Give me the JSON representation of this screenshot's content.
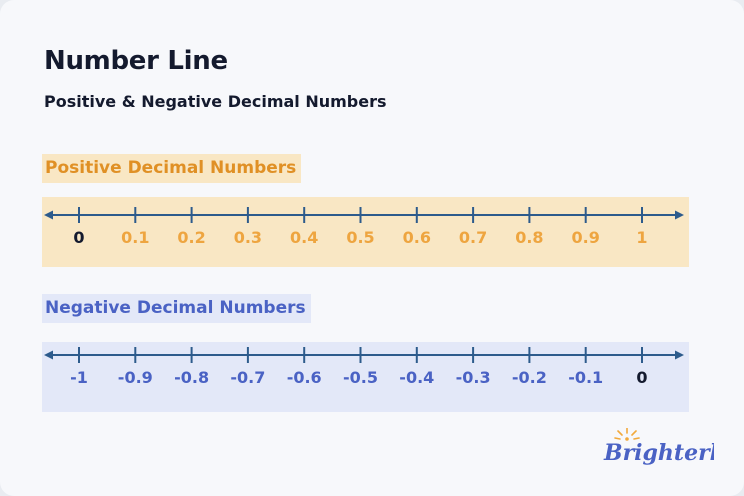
{
  "title": "Number Line",
  "subtitle": "Positive & Negative Decimal Numbers",
  "positive": {
    "label": "Positive Decimal Numbers",
    "ticks": [
      "0",
      "0.1",
      "0.2",
      "0.3",
      "0.4",
      "0.5",
      "0.6",
      "0.7",
      "0.8",
      "0.9",
      "1"
    ],
    "tick_colors": [
      "#141a2e",
      "#eea540",
      "#eea540",
      "#eea540",
      "#eea540",
      "#eea540",
      "#eea540",
      "#eea540",
      "#eea540",
      "#eea540",
      "#eea540"
    ],
    "band_color": "#f9e7c4"
  },
  "negative": {
    "label": "Negative Decimal Numbers",
    "ticks": [
      "-1",
      "-0.9",
      "-0.8",
      "-0.7",
      "-0.6",
      "-0.5",
      "-0.4",
      "-0.3",
      "-0.2",
      "-0.1",
      "0"
    ],
    "tick_colors": [
      "#4a62c4",
      "#4a62c4",
      "#4a62c4",
      "#4a62c4",
      "#4a62c4",
      "#4a62c4",
      "#4a62c4",
      "#4a62c4",
      "#4a62c4",
      "#4a62c4",
      "#141a2e"
    ],
    "band_color": "#e3e8f8"
  },
  "line_color": "#2d5b8c",
  "logo": "Brighterly"
}
